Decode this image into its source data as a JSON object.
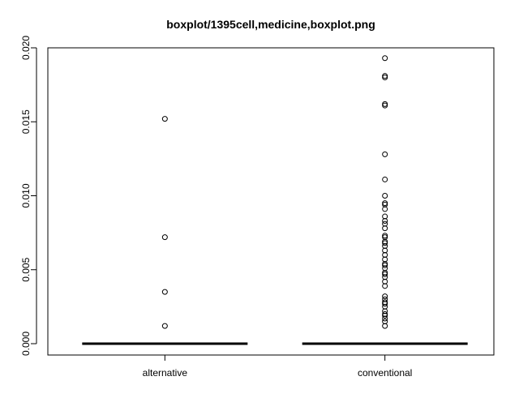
{
  "chart_data": {
    "type": "boxplot",
    "title": "boxplot/1395cell,medicine,boxplot.png",
    "xlabel": "",
    "ylabel": "",
    "ylim": [
      0,
      0.02
    ],
    "y_ticks": [
      "0.000",
      "0.005",
      "0.010",
      "0.015",
      "0.020"
    ],
    "grid": false,
    "categories": [
      "alternative",
      "conventional"
    ],
    "boxes": [
      {
        "category": "alternative",
        "min": 0,
        "q1": 0,
        "median": 0,
        "q3": 0,
        "max": 0,
        "outliers": [
          0.0012,
          0.0035,
          0.0072,
          0.0152
        ]
      },
      {
        "category": "conventional",
        "min": 0,
        "q1": 0,
        "median": 0,
        "q3": 0,
        "max": 0,
        "outliers": [
          0.0012,
          0.0015,
          0.0017,
          0.0019,
          0.002,
          0.0022,
          0.0025,
          0.0027,
          0.0028,
          0.003,
          0.0032,
          0.0039,
          0.0042,
          0.0045,
          0.0047,
          0.0048,
          0.0051,
          0.0053,
          0.0054,
          0.0057,
          0.006,
          0.0063,
          0.0066,
          0.0068,
          0.0069,
          0.0072,
          0.0073,
          0.0078,
          0.0081,
          0.0083,
          0.0086,
          0.0091,
          0.0094,
          0.0095,
          0.01,
          0.0111,
          0.0128,
          0.0161,
          0.0162,
          0.018,
          0.0181,
          0.0193
        ]
      }
    ]
  }
}
